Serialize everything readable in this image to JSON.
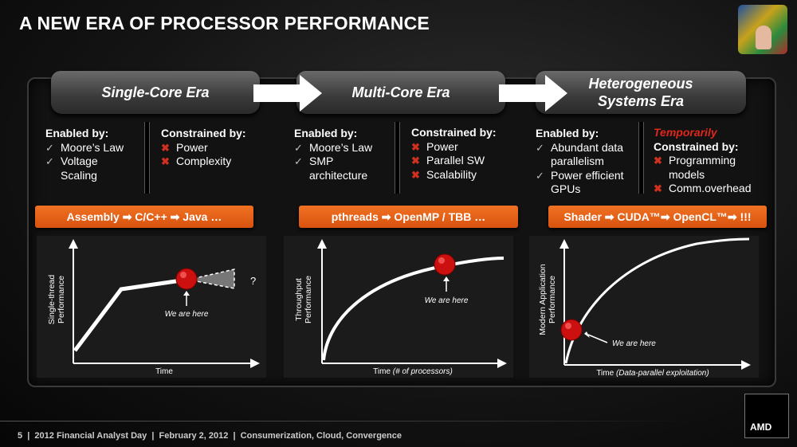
{
  "slide": {
    "title": "A NEW ERA OF PROCESSOR PERFORMANCE",
    "footer": "5  |  2012 Financial Analyst Day  |  February 2, 2012  |  Consumerization, Cloud, Convergence",
    "logo": "AMD",
    "thumbnail": "touchscreen-hand-image",
    "accent_color": "#e8621a"
  },
  "eras": [
    {
      "title_line1": "Single-Core Era",
      "title_line2": "",
      "enabled_heading": "Enabled by:",
      "enabled": [
        "Moore’s Law",
        "Voltage",
        "Scaling"
      ],
      "constrained_prefix": "",
      "constrained_heading": "Constrained by:",
      "constrained": [
        "Power",
        "Complexity"
      ],
      "bar": "Assembly ➡ C/C++ ➡ Java …",
      "ylabel_line1": "Single-thread",
      "ylabel_line2": "Performance",
      "xlabel": "Time",
      "xlabel_italic": "",
      "marker_label": "We are here",
      "question": "?"
    },
    {
      "title_line1": "Multi-Core Era",
      "title_line2": "",
      "enabled_heading": "Enabled by:",
      "enabled": [
        "Moore’s Law",
        "SMP",
        "architecture"
      ],
      "constrained_prefix": "",
      "constrained_heading": "Constrained by:",
      "constrained": [
        "Power",
        "Parallel SW",
        "Scalability"
      ],
      "bar": "pthreads ➡ OpenMP / TBB …",
      "ylabel_line1": "Throughput",
      "ylabel_line2": "Performance",
      "xlabel": "Time ",
      "xlabel_italic": "(# of processors)",
      "marker_label": "We are here",
      "question": ""
    },
    {
      "title_line1": "Heterogeneous",
      "title_line2": "Systems Era",
      "enabled_heading": "Enabled by:",
      "enabled": [
        "Abundant data",
        "parallelism",
        "Power efficient",
        "GPUs"
      ],
      "constrained_prefix": "Temporarily",
      "constrained_heading": "Constrained by:",
      "constrained": [
        "Programming",
        "models",
        "Comm.overhead"
      ],
      "bar": "Shader ➡ CUDA™➡ OpenCL™➡ !!!",
      "ylabel_line1": "Modern Application",
      "ylabel_line2": "Performance",
      "xlabel": "Time ",
      "xlabel_italic": "(Data-parallel exploitation)",
      "marker_label": "We are here",
      "question": ""
    }
  ]
}
